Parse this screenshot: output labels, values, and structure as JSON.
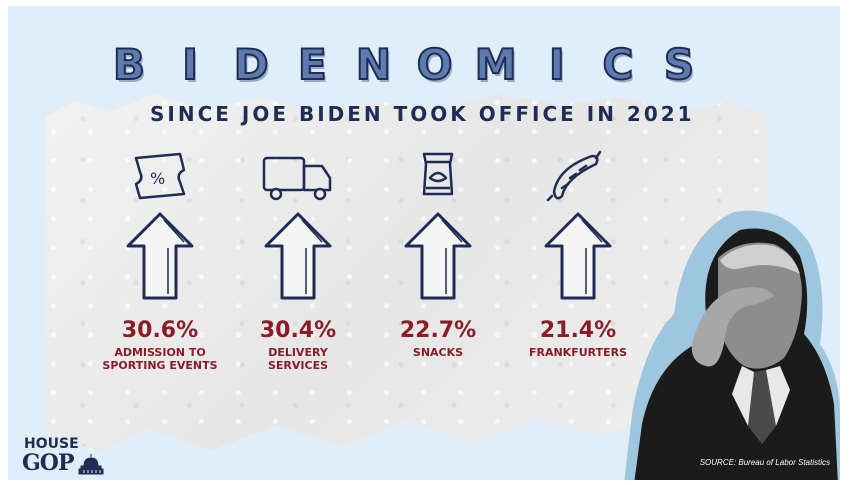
{
  "title_letters": [
    "B",
    "I",
    "D",
    "E",
    "N",
    "O",
    "M",
    "I",
    "C",
    "S"
  ],
  "subtitle": "SINCE JOE BIDEN TOOK OFFICE IN 2021",
  "items": [
    {
      "percent": "30.6%",
      "label_line1": "ADMISSION TO",
      "label_line2": "SPORTING EVENTS",
      "icon": "ticket-icon"
    },
    {
      "percent": "30.4%",
      "label_line1": "DELIVERY",
      "label_line2": "SERVICES",
      "icon": "truck-icon"
    },
    {
      "percent": "22.7%",
      "label_line1": "SNACKS",
      "label_line2": "",
      "icon": "chip-bag-icon"
    },
    {
      "percent": "21.4%",
      "label_line1": "FRANKFURTERS",
      "label_line2": "",
      "icon": "sausage-icon"
    }
  ],
  "source": "SOURCE: Bureau of Labor Statistics",
  "logo": {
    "line1": "HOUSE",
    "line2": "GOP"
  },
  "colors": {
    "background": "#dfeef8",
    "navy": "#1e2d55",
    "accent_red": "#8a1c28",
    "title_fill": "#5e7bb0"
  }
}
